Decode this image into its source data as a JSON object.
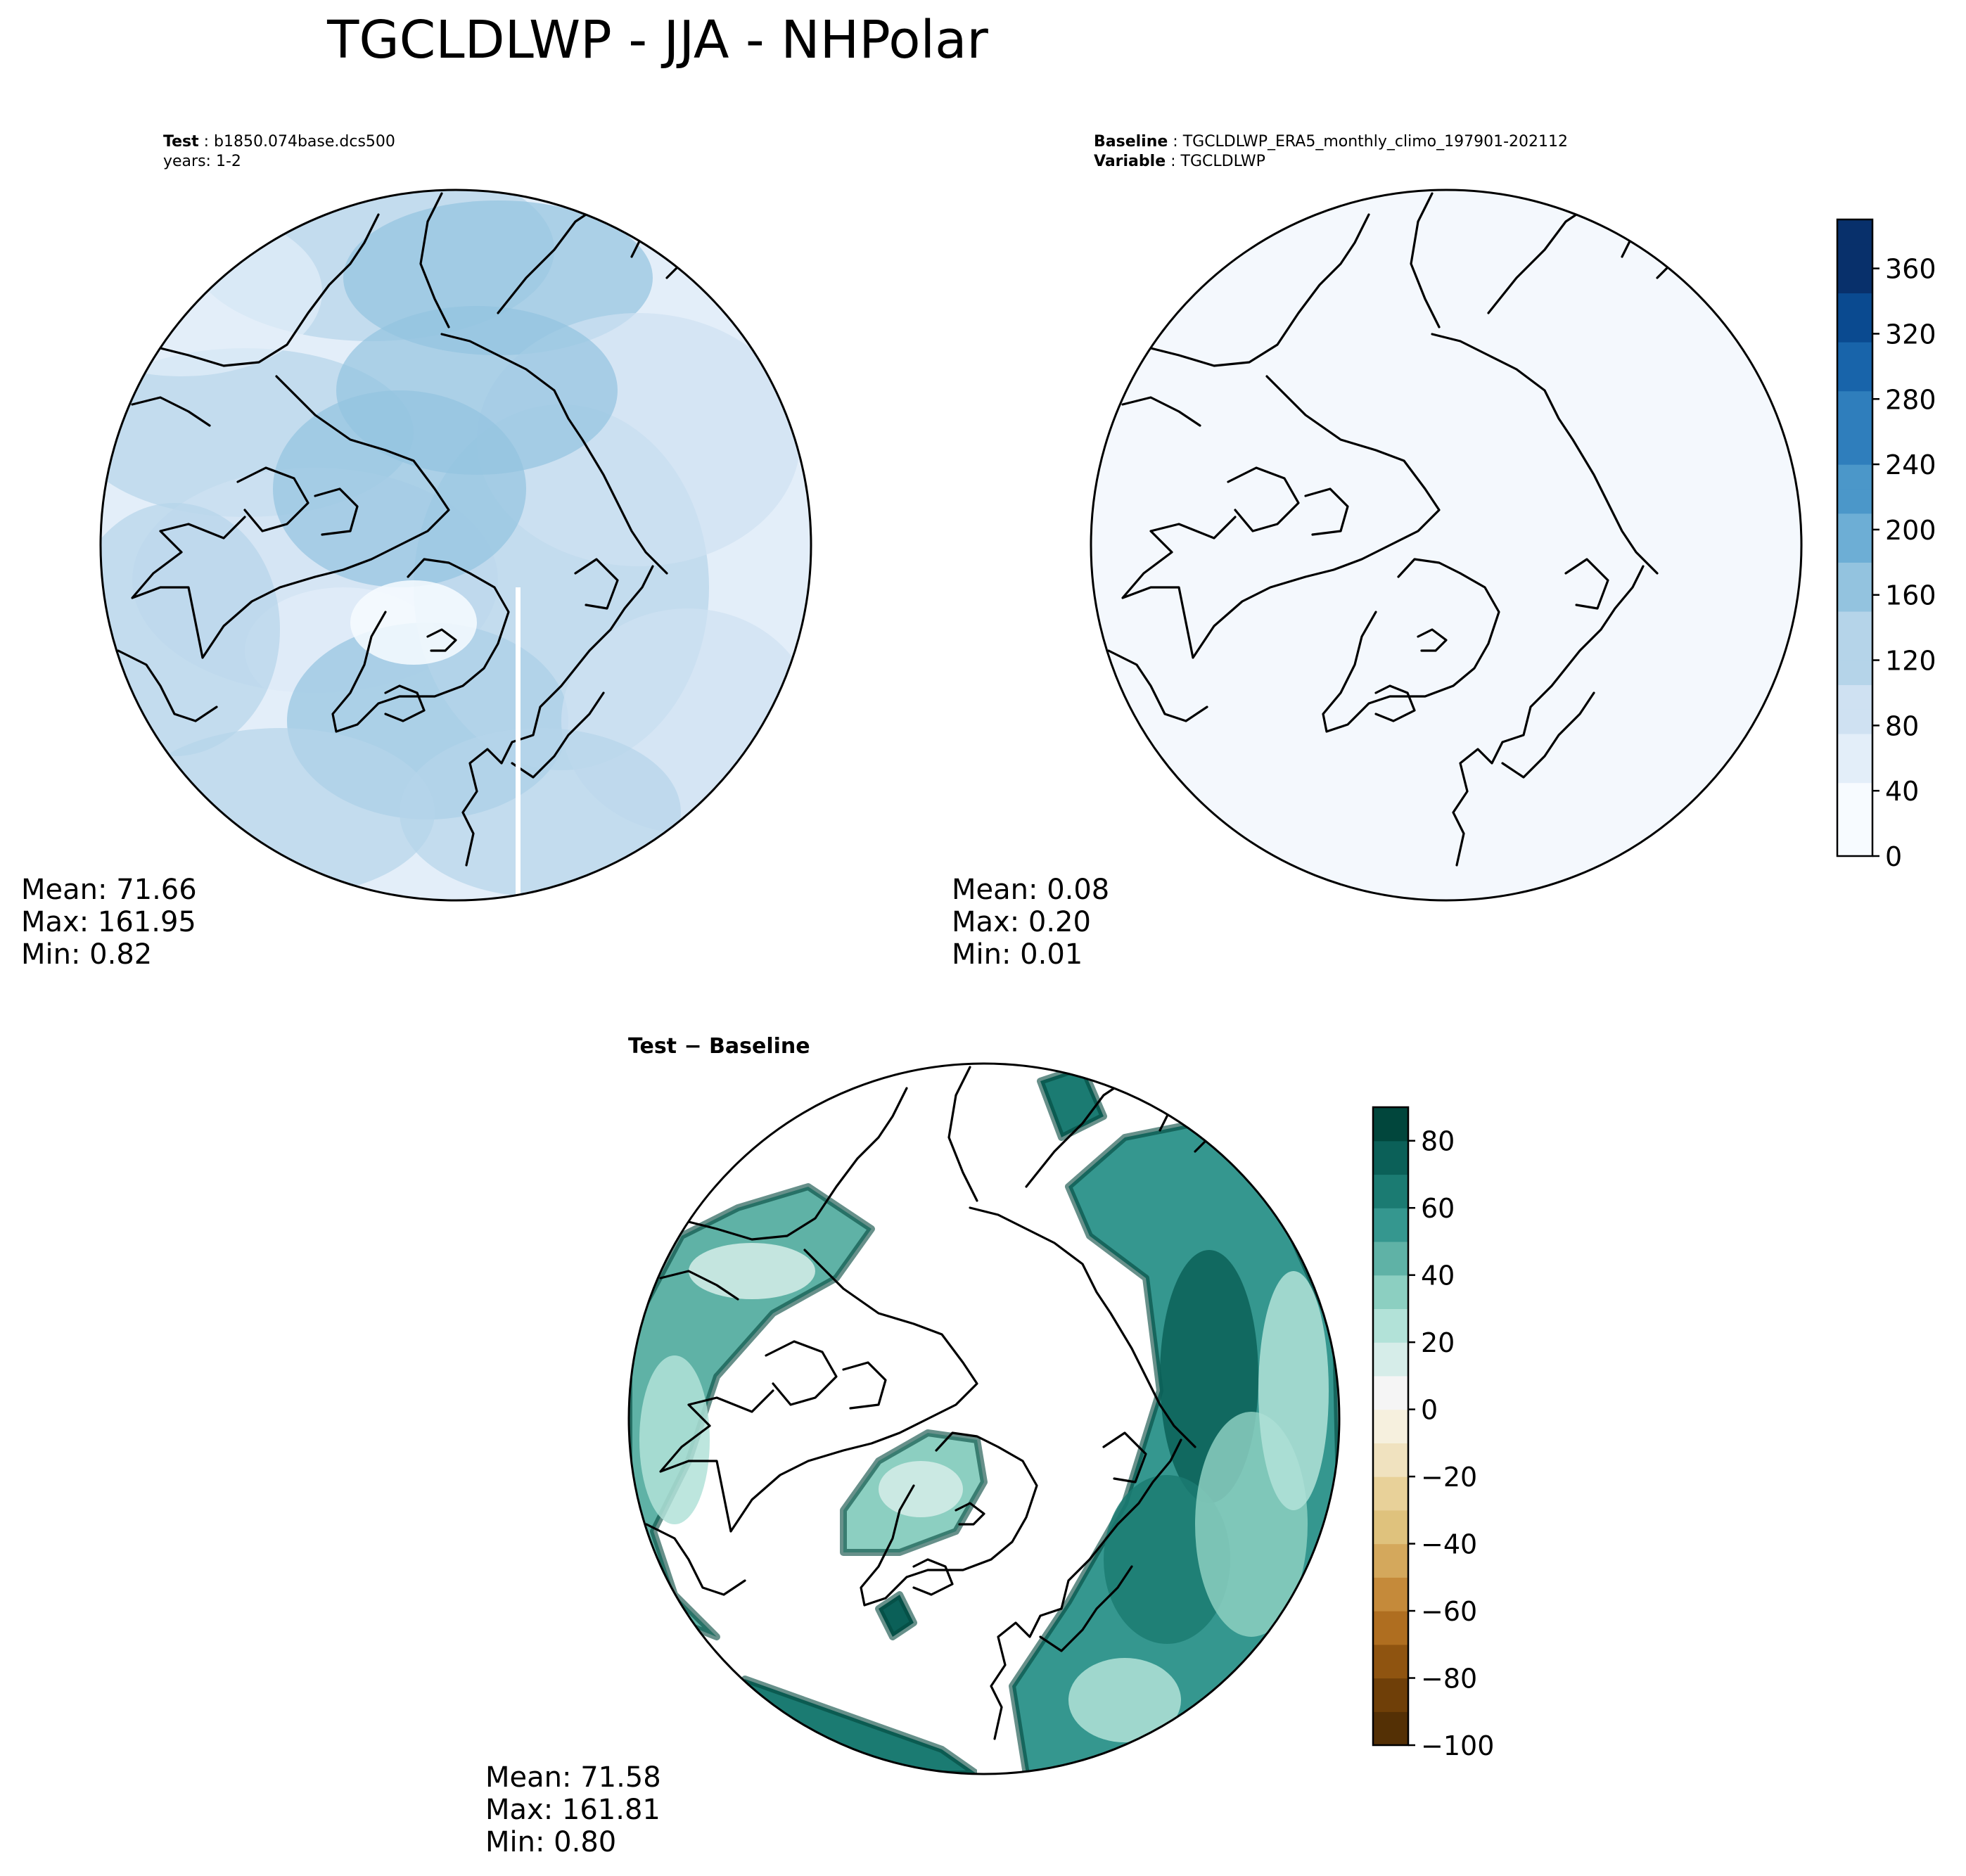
{
  "figure": {
    "title": "TGCLDLWP - JJA - NHPolar"
  },
  "chart_data": [
    {
      "type": "heatmap",
      "panel": "test",
      "projection": "north polar stereographic",
      "header_lines": [
        {
          "key": "Test",
          "value": "b1850.074base.dcs500"
        },
        {
          "key": "",
          "value": "years: 1-2"
        }
      ],
      "stats": [
        {
          "label": "Mean:",
          "value": "71.66"
        },
        {
          "label": "Max:",
          "value": "161.95"
        },
        {
          "label": "Min:",
          "value": "0.82"
        }
      ],
      "colormap": "Blues",
      "colorbar": {
        "ticks": [
          "0",
          "40",
          "80",
          "120",
          "160",
          "200",
          "240",
          "280",
          "320",
          "360"
        ],
        "range": [
          0,
          390
        ],
        "shared_with": "baseline"
      },
      "field_levels_description": "light to medium blue, values mostly 40-160"
    },
    {
      "type": "heatmap",
      "panel": "baseline",
      "projection": "north polar stereographic",
      "header_lines": [
        {
          "key": "Baseline",
          "value": "TGCLDLWP_ERA5_monthly_climo_197901-202112"
        },
        {
          "key": "Variable",
          "value": "TGCLDLWP"
        }
      ],
      "stats": [
        {
          "label": "Mean:",
          "value": "0.08"
        },
        {
          "label": "Max:",
          "value": "0.20"
        },
        {
          "label": "Min:",
          "value": "0.01"
        }
      ],
      "colormap": "Blues",
      "colorbar": {
        "ticks": [
          "0",
          "40",
          "80",
          "120",
          "160",
          "200",
          "240",
          "280",
          "320",
          "360"
        ],
        "range": [
          0,
          390
        ]
      }
    },
    {
      "type": "heatmap",
      "panel": "difference",
      "projection": "north polar stereographic",
      "header_lines": [
        {
          "key": "Test − Baseline",
          "value": ""
        }
      ],
      "stats": [
        {
          "label": "Mean:",
          "value": "71.58"
        },
        {
          "label": "Max:",
          "value": "161.81"
        },
        {
          "label": "Min:",
          "value": "0.80"
        }
      ],
      "colormap": "BrBG",
      "colorbar": {
        "ticks": [
          "80",
          "60",
          "40",
          "20",
          "0",
          "−20",
          "−40",
          "−60",
          "−80",
          "−100"
        ],
        "range": [
          -100,
          90
        ]
      }
    }
  ],
  "colors": {
    "blues": [
      "#f7fbff",
      "#e3eef9",
      "#cfe1f2",
      "#b5d4e9",
      "#93c3df",
      "#6daed5",
      "#4b97c9",
      "#2f7ebc",
      "#1864aa",
      "#0a4a90",
      "#08306b"
    ],
    "brbg_pos": [
      "#f5f5f5",
      "#d6ede9",
      "#b2e2d8",
      "#8ccfc1",
      "#5fb2a6",
      "#35978f",
      "#1b7b72",
      "#0b6058",
      "#01463c",
      "#003c30"
    ],
    "brbg_neg": [
      "#f6f0de",
      "#f0e2bf",
      "#e8d199",
      "#dfc27d",
      "#d4a85c",
      "#c58a3a",
      "#af6e20",
      "#8f5410",
      "#6f3f08",
      "#543005"
    ],
    "coast": "#000000"
  }
}
